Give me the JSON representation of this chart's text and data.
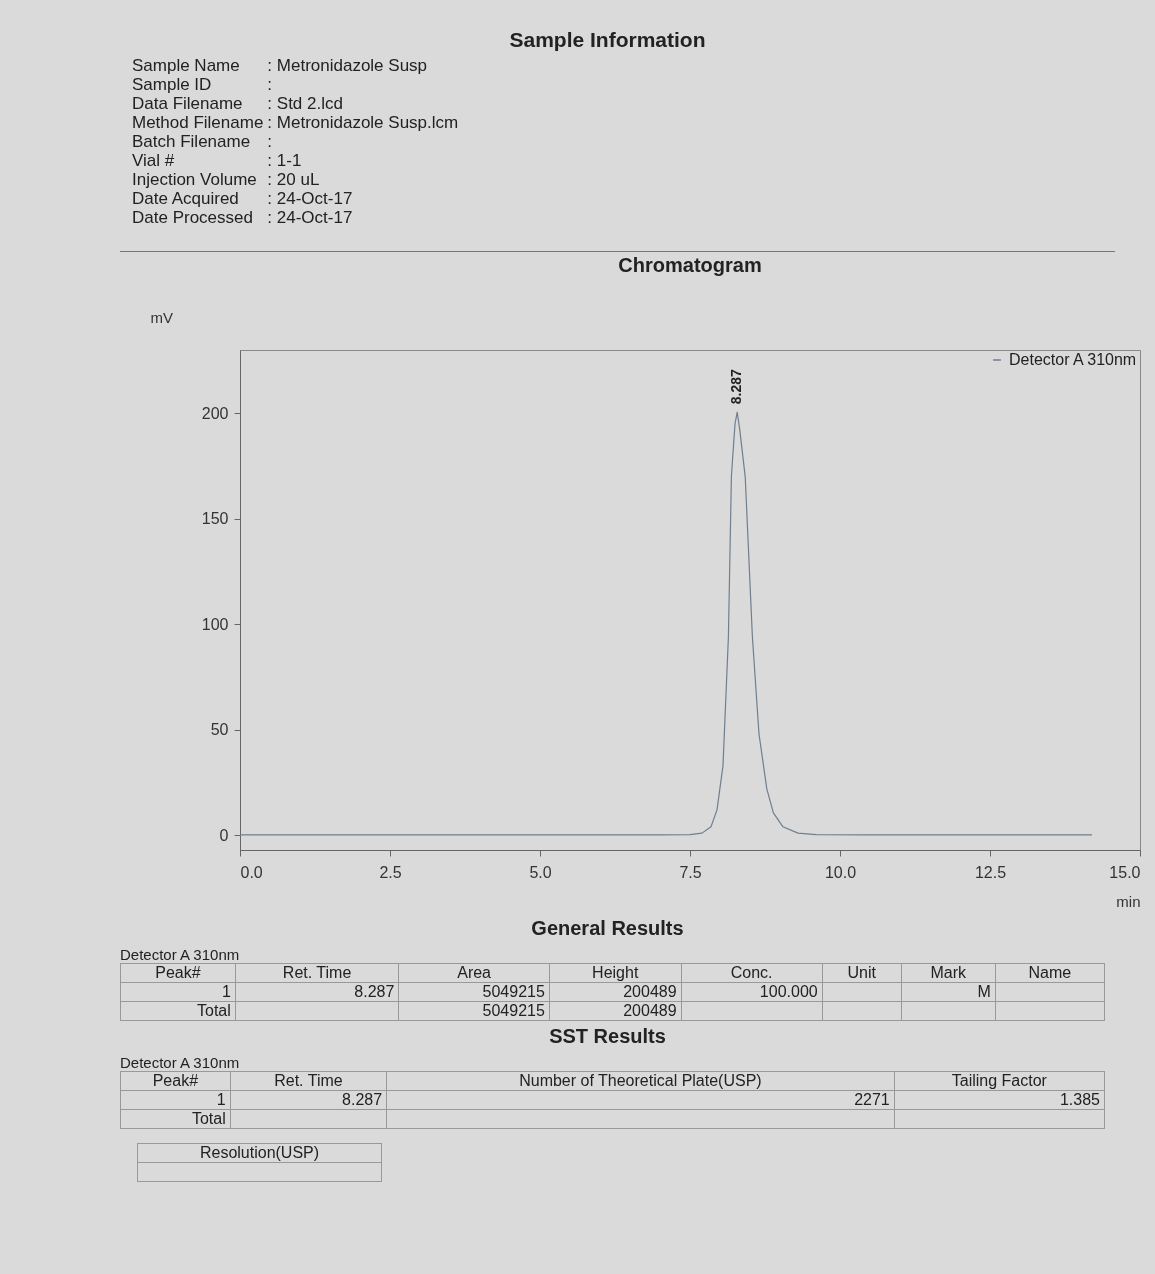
{
  "chart_data": {
    "type": "line",
    "title": "Sample Information",
    "subtitle": "Chromatogram",
    "xlabel": "min",
    "ylabel": "mV",
    "x": [
      0,
      1,
      2,
      3,
      4,
      5,
      6,
      7,
      7.5,
      7.7,
      7.85,
      7.95,
      8.05,
      8.14,
      8.19,
      8.25,
      8.287,
      8.33,
      8.42,
      8.54,
      8.65,
      8.78,
      8.89,
      9.05,
      9.3,
      9.6,
      10.5,
      12,
      13.5,
      14.2
    ],
    "series": [
      {
        "name": "Detector A 310nm",
        "color": "#6f7f8e",
        "values": [
          0.2,
          0.2,
          0.2,
          0.2,
          0.2,
          0.2,
          0.2,
          0.2,
          0.3,
          1,
          4,
          12,
          33,
          94,
          170,
          195,
          200.5,
          192,
          170,
          94,
          48,
          22,
          10.6,
          4,
          1,
          0.3,
          0.2,
          0.2,
          0.2,
          0.2
        ]
      }
    ],
    "xlim": [
      0,
      15
    ],
    "ylim": [
      -7,
      230
    ],
    "xticks": [
      {
        "value": 0,
        "label": "0.0"
      },
      {
        "value": 2.5,
        "label": "2.5"
      },
      {
        "value": 5,
        "label": "5.0"
      },
      {
        "value": 7.5,
        "label": "7.5"
      },
      {
        "value": 10,
        "label": "10.0"
      },
      {
        "value": 12.5,
        "label": "12.5"
      },
      {
        "value": 15,
        "label": "15.0"
      }
    ],
    "yticks": [
      0,
      50,
      100,
      150,
      200
    ],
    "legend": "top right",
    "annotations": [
      "Sample Name\t: Metronidazole Susp",
      "Sample ID\t:",
      "Data Filename\t: Std 2.lcd",
      "Method Filename\t: Metronidazole Susp.lcm",
      "Batch Filename\t:",
      "Vial #\t: 1-1",
      "Injection Volume\t: 20 uL",
      "Date Acquired\t: 24-Oct-17",
      "Date Processed\t: 24-Oct-17",
      {
        "text": "8.287",
        "x": 8.287,
        "y": 200.5
      },
      "General Results",
      "Detector A 310nm",
      "Peak#\tRet. Time\tArea\tHeight\tConc.\tUnit\tMark\tName",
      "1\t8.287\t5049215\t200489\t100.000\t\tM\t",
      "Total\t\t5049215\t200489\t\t\t\t",
      "SST Results",
      "Detector A 310nm",
      "Peak#\tRet. Time\tNumber of Theoretical Plate(USP)\tTailing Factor",
      "1\t8.287\t2271\t1.385",
      "Total\t\t\t",
      "Resolution(USP)"
    ]
  }
}
